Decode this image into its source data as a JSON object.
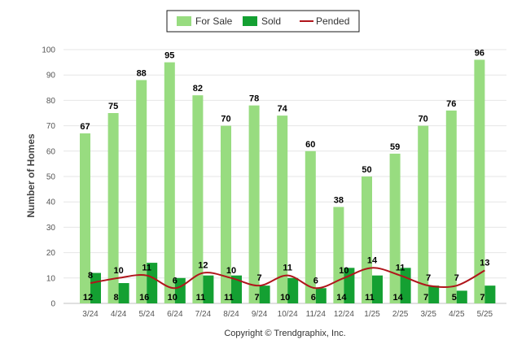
{
  "chart_data": {
    "type": "bar",
    "ylabel": "Number of Homes",
    "ylim": [
      0,
      100
    ],
    "yticks": [
      0,
      10,
      20,
      30,
      40,
      50,
      60,
      70,
      80,
      90,
      100
    ],
    "grid": true,
    "legend_position": "top-center",
    "categories": [
      "3/24",
      "4/24",
      "5/24",
      "6/24",
      "7/24",
      "8/24",
      "9/24",
      "10/24",
      "11/24",
      "12/24",
      "1/25",
      "2/25",
      "3/25",
      "4/25",
      "5/25"
    ],
    "series": [
      {
        "name": "For Sale",
        "kind": "bar",
        "color": "#98dc80",
        "values": [
          67,
          75,
          88,
          95,
          82,
          70,
          78,
          74,
          60,
          38,
          50,
          59,
          70,
          76,
          96
        ]
      },
      {
        "name": "Sold",
        "kind": "bar",
        "color": "#14a032",
        "values": [
          12,
          8,
          16,
          10,
          11,
          11,
          7,
          10,
          6,
          14,
          11,
          14,
          7,
          5,
          7
        ]
      },
      {
        "name": "Pended",
        "kind": "line",
        "color": "#b0151b",
        "values": [
          8,
          10,
          11,
          6,
          12,
          10,
          7,
          11,
          6,
          10,
          14,
          11,
          7,
          7,
          13
        ]
      }
    ],
    "footer": "Copyright © Trendgraphix, Inc."
  }
}
